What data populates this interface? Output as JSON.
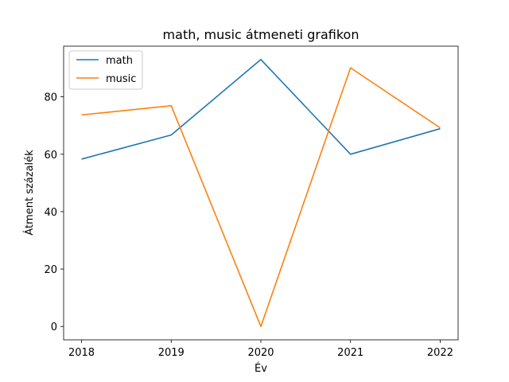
{
  "chart_data": {
    "type": "line",
    "title": "math, music átmeneti grafikon",
    "xlabel": "Év",
    "ylabel": "Átment százalék",
    "x": [
      2018,
      2019,
      2020,
      2021,
      2022
    ],
    "x_tick_labels": [
      "2018",
      "2019",
      "2020",
      "2021",
      "2022"
    ],
    "y_ticks": [
      0,
      20,
      40,
      60,
      80
    ],
    "y_tick_labels": [
      "0",
      "20",
      "40",
      "60",
      "80"
    ],
    "xlim": [
      2017.8,
      2022.2
    ],
    "ylim": [
      -4.65,
      97.65
    ],
    "grid": false,
    "legend_position": "top-left",
    "series": [
      {
        "name": "math",
        "color": "#1f77b4",
        "values": [
          58.3,
          66.7,
          93.0,
          60.0,
          68.9
        ]
      },
      {
        "name": "music",
        "color": "#ff7f0e",
        "values": [
          73.7,
          76.9,
          0.0,
          90.1,
          69.2
        ]
      }
    ]
  }
}
